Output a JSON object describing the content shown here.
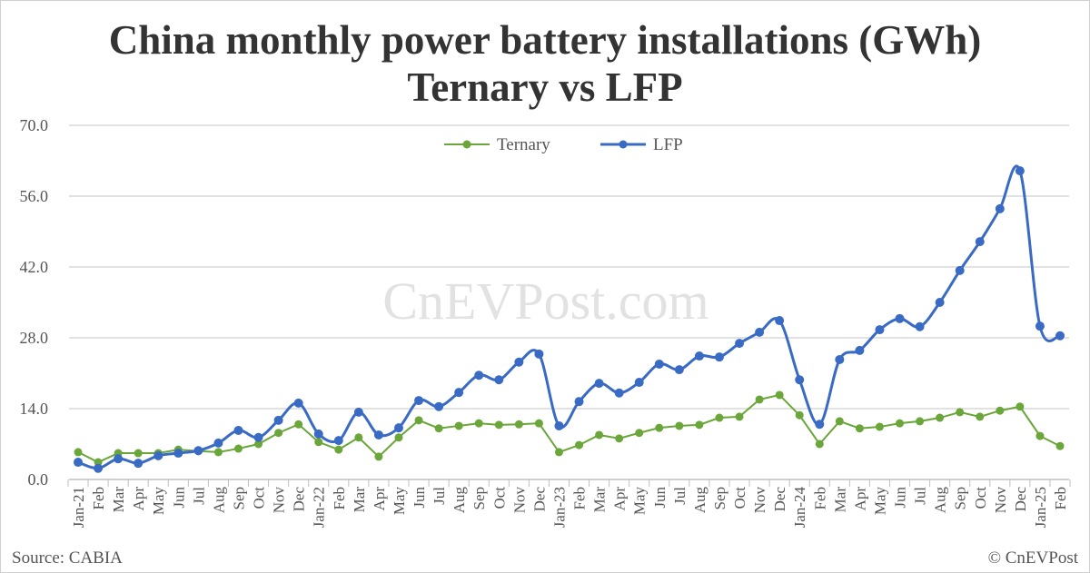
{
  "chart_data": {
    "type": "line",
    "title": "China monthly power battery installations (GWh)",
    "subtitle": "Ternary vs LFP",
    "ylim": [
      0,
      70
    ],
    "yticks": [
      "0.0",
      "14.0",
      "28.0",
      "42.0",
      "56.0",
      "70.0"
    ],
    "grid": true,
    "legend_position": "top-center",
    "categories": [
      "Jan-21",
      "Feb",
      "Mar",
      "Apr",
      "May",
      "Jun",
      "Jul",
      "Aug",
      "Sep",
      "Oct",
      "Nov",
      "Dec",
      "Jan-22",
      "Feb",
      "Mar",
      "Apr",
      "May",
      "Jun",
      "Jul",
      "Aug",
      "Sep",
      "Oct",
      "Nov",
      "Dec",
      "Jan-23",
      "Feb",
      "Mar",
      "Apr",
      "May",
      "Jun",
      "Jul",
      "Aug",
      "Sep",
      "Oct",
      "Nov",
      "Dec",
      "Jan-24",
      "Feb",
      "Mar",
      "Apr",
      "May",
      "Jun",
      "Jul",
      "Aug",
      "Sep",
      "Oct",
      "Nov",
      "Dec",
      "Jan-25",
      "Feb"
    ],
    "series": [
      {
        "name": "Ternary",
        "color": "#6aa639",
        "smooth": false,
        "values": [
          5.4,
          3.4,
          5.2,
          5.2,
          5.2,
          5.9,
          5.6,
          5.4,
          6.1,
          7.0,
          9.2,
          10.9,
          7.4,
          5.9,
          8.3,
          4.5,
          8.3,
          11.7,
          10.1,
          10.6,
          11.1,
          10.8,
          10.9,
          11.1,
          5.4,
          6.8,
          8.8,
          8.1,
          9.2,
          10.2,
          10.6,
          10.8,
          12.2,
          12.4,
          15.8,
          16.7,
          12.7,
          7.0,
          11.5,
          10.1,
          10.4,
          11.1,
          11.5,
          12.2,
          13.3,
          12.4,
          13.6,
          14.4,
          8.6,
          6.6
        ]
      },
      {
        "name": "LFP",
        "color": "#3a6bc4",
        "smooth": true,
        "values": [
          3.4,
          2.2,
          4.1,
          3.2,
          4.7,
          5.2,
          5.7,
          7.2,
          9.7,
          8.3,
          11.7,
          15.1,
          9.0,
          7.7,
          13.3,
          8.8,
          10.2,
          15.6,
          14.4,
          17.2,
          20.6,
          19.7,
          23.2,
          24.8,
          10.6,
          15.4,
          19.0,
          17.1,
          19.2,
          22.8,
          21.7,
          24.4,
          24.2,
          26.9,
          29.1,
          31.4,
          19.7,
          10.9,
          23.7,
          25.5,
          29.6,
          31.8,
          30.2,
          35.0,
          41.3,
          47.0,
          53.5,
          61.0,
          30.3,
          28.4
        ]
      }
    ]
  },
  "watermark": "CnEVPost.com",
  "source": "Source: CABIA",
  "copyright": "© CnEVPost"
}
